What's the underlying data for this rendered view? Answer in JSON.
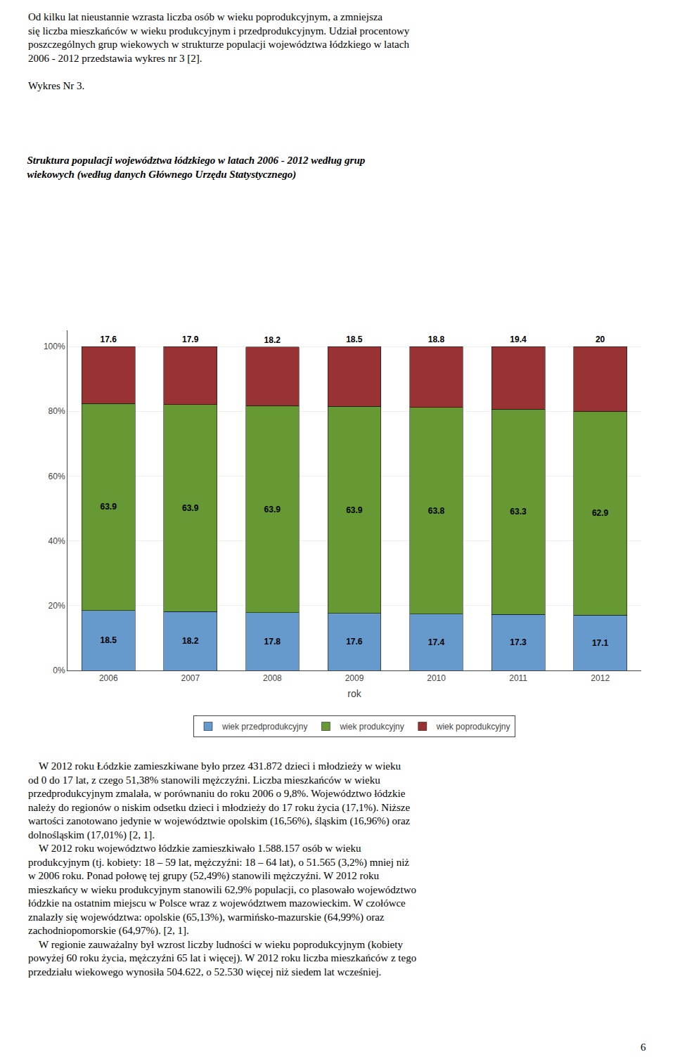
{
  "chart_data": {
    "type": "bar",
    "title": "Struktura populacji województwa łódzkiego w latach 2006 - 2012 według grup\nwiekowych (według danych Głównego Urzędu Statystycznego)",
    "xlabel": "rok",
    "categories": [
      "2006",
      "2007",
      "2008",
      "2009",
      "2010",
      "2011",
      "2012"
    ],
    "series": [
      {
        "name": "wiek przedprodukcyjny",
        "color": "#6699CC",
        "values": [
          18.5,
          18.2,
          17.8,
          17.6,
          17.4,
          17.3,
          17.1
        ]
      },
      {
        "name": "wiek produkcyjny",
        "color": "#669933",
        "values": [
          63.9,
          63.9,
          63.9,
          63.9,
          63.8,
          63.3,
          62.9
        ]
      },
      {
        "name": "wiek poprodukcyjny",
        "color": "#993333",
        "values": [
          17.6,
          17.9,
          18.2,
          18.5,
          18.8,
          19.4,
          20.0
        ]
      }
    ],
    "stacked": true,
    "data_labels": true,
    "grid": true,
    "legend": "bottom",
    "ylim": [
      0,
      105
    ],
    "yticks": [
      {
        "value": 0,
        "label": "0%"
      },
      {
        "value": 20,
        "label": "20%"
      },
      {
        "value": 40,
        "label": "40%"
      },
      {
        "value": 60,
        "label": "60%"
      },
      {
        "value": 80,
        "label": "80%"
      },
      {
        "value": 100,
        "label": "100%"
      }
    ],
    "annotations": [
      "Od kilku lat nieustannie wzrasta liczba osób w wieku poprodukcyjnym, a zmniejsza\nsię liczba mieszkańców w wieku produkcyjnym i przedprodukcyjnym. Udział procentowy\nposzczególnych grup wiekowych w strukturze populacji województwa łódzkiego w latach\n2006 - 2012 przedstawia wykres nr 3 [2].",
      "Wykres Nr 3.",
      "    W 2012 roku Łódzkie zamieszkiwane było przez 431.872 dzieci i młodzieży w wieku\nod 0 do 17 lat, z czego 51,38% stanowili mężczyźni. Liczba mieszkańców w wieku\nprzedprodukcyjnym zmalała, w porównaniu do roku 2006 o 9,8%. Województwo łódzkie\nnależy do regionów o niskim odsetku dzieci i młodzieży do 17 roku życia (17,1%). Niższe\nwartości zanotowano jedynie w województwie opolskim (16,56%), śląskim (16,96%) oraz\ndolnośląskim (17,01%) [2, 1].\n    W 2012 roku województwo łódzkie zamieszkiwało 1.588.157 osób w wieku\nprodukcyjnym (tj. kobiety: 18 – 59 lat, mężczyźni: 18 – 64 lat), o 51.565 (3,2%) mniej niż\nw 2006 roku. Ponad połowę tej grupy (52,49%) stanowili mężczyźni. W 2012 roku\nmieszkańcy w wieku produkcyjnym stanowili 62,9% populacji, co plasowało województwo\nłódzkie na ostatnim miejscu w Polsce wraz z województwem mazowieckim. W czołówce\nznalazły się województwa: opolskie (65,13%), warmińsko-mazurskie (64,99%) oraz\nzachodniopomorskie (64,97%). [2, 1].\n    W regionie zauważalny był wzrost liczby ludności w wieku poprodukcyjnym (kobiety\npowyżej 60 roku życia, mężczyźni 65 lat i więcej). W 2012 roku liczba mieszkańców z tego\nprzedziału wiekowego wynosiła 504.622, o 52.530 więcej niż siedem lat wcześniej.",
      "6"
    ]
  }
}
